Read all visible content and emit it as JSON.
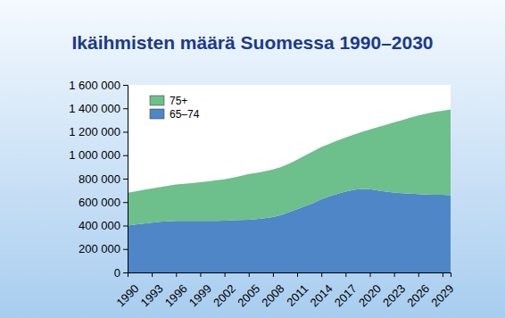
{
  "chart_data": {
    "type": "area",
    "title": "Ikäihmisten määrä Suomessa 1990–2030",
    "stacked": true,
    "grid": false,
    "legend": "upper left",
    "x": [
      1990,
      1991,
      1992,
      1993,
      1994,
      1995,
      1996,
      1997,
      1998,
      1999,
      2000,
      2001,
      2002,
      2003,
      2004,
      2005,
      2006,
      2007,
      2008,
      2009,
      2010,
      2011,
      2012,
      2013,
      2014,
      2015,
      2016,
      2017,
      2018,
      2019,
      2020,
      2021,
      2022,
      2023,
      2024,
      2025,
      2026,
      2027,
      2028,
      2029,
      2030
    ],
    "xlim": [
      1990,
      2030
    ],
    "xticks": [
      1990,
      1993,
      1996,
      1999,
      2002,
      2005,
      2008,
      2011,
      2014,
      2017,
      2020,
      2023,
      2026,
      2029
    ],
    "ylim": [
      0,
      1600000
    ],
    "yticks": [
      0,
      {
        "value": 200000,
        "label": "200 000"
      },
      {
        "value": 400000,
        "label": "400 000"
      },
      {
        "value": 600000,
        "label": "600 000"
      },
      {
        "value": 800000,
        "label": "800 000"
      },
      {
        "value": 1000000,
        "label": "1 000 000"
      },
      {
        "value": 1200000,
        "label": "1 200 000"
      },
      {
        "value": 1400000,
        "label": "1 400 000"
      },
      {
        "value": 1600000,
        "label": "1 600 000"
      }
    ],
    "series": [
      {
        "name": "65–74",
        "color": "#4f86c8",
        "values": [
          400000,
          410000,
          418000,
          425000,
          432000,
          437000,
          440000,
          440000,
          440000,
          440000,
          440000,
          440000,
          442000,
          445000,
          448000,
          450000,
          455000,
          462000,
          472000,
          490000,
          515000,
          540000,
          565000,
          592000,
          625000,
          650000,
          670000,
          690000,
          705000,
          712000,
          710000,
          700000,
          690000,
          682000,
          676000,
          672000,
          668000,
          665000,
          663000,
          662000,
          660000
        ]
      },
      {
        "name": "75+",
        "color": "#6dbf8c",
        "values": [
          280000,
          282000,
          286000,
          291000,
          296000,
          303000,
          310000,
          316000,
          322000,
          330000,
          338000,
          346000,
          353000,
          363000,
          374000,
          390000,
          395000,
          400000,
          406000,
          410000,
          413000,
          422000,
          433000,
          443000,
          445000,
          448000,
          455000,
          460000,
          470000,
          486000,
          510000,
          540000,
          570000,
          598000,
          624000,
          648000,
          672000,
          690000,
          707000,
          718000,
          730000
        ]
      }
    ]
  }
}
